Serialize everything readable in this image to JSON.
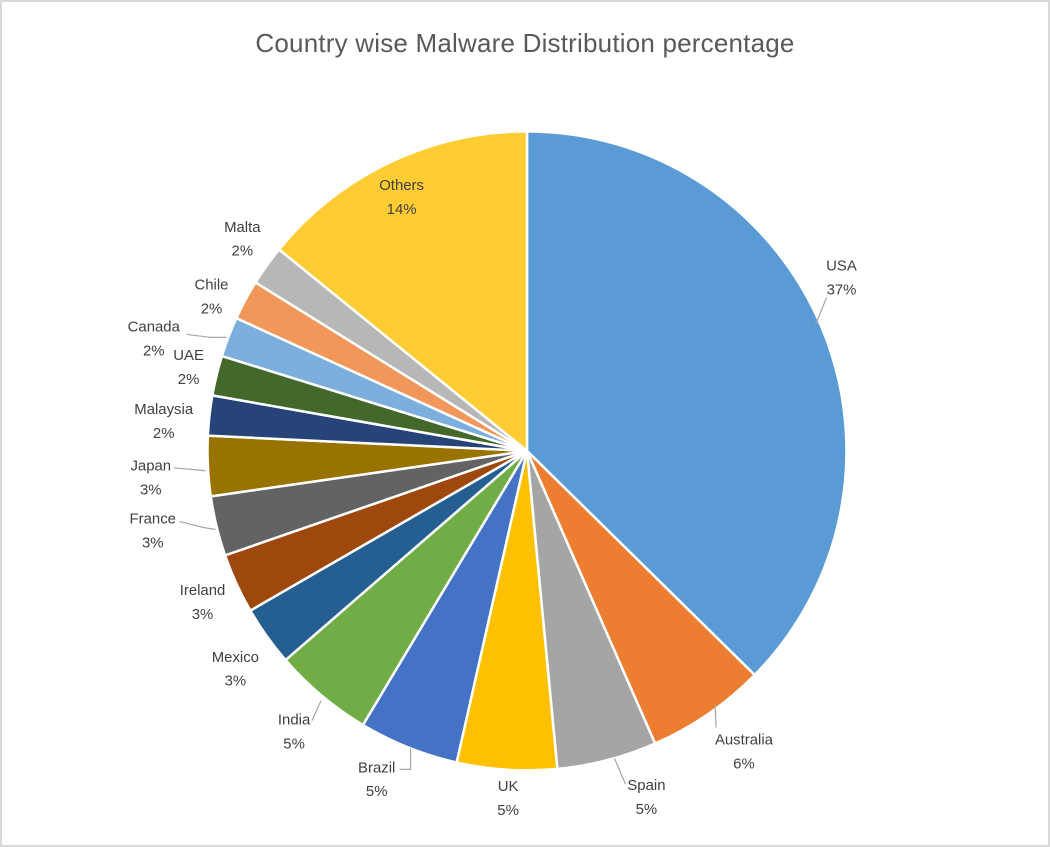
{
  "title": "Country wise Malware Distribution percentage",
  "chart_data": {
    "type": "pie",
    "title": "Country wise Malware Distribution percentage",
    "categories": [
      "USA",
      "Australia",
      "Spain",
      "UK",
      "Brazil",
      "India",
      "Mexico",
      "Ireland",
      "France",
      "Japan",
      "Malaysia",
      "UAE",
      "Canada",
      "Chile",
      "Malta",
      "Others"
    ],
    "values": [
      37,
      6,
      5,
      5,
      5,
      5,
      3,
      3,
      3,
      3,
      2,
      2,
      2,
      2,
      2,
      14
    ],
    "percent_labels": [
      "37%",
      "6%",
      "5%",
      "5%",
      "5%",
      "5%",
      "3%",
      "3%",
      "3%",
      "3%",
      "2%",
      "2%",
      "2%",
      "2%",
      "2%",
      "14%"
    ],
    "colors": [
      "#5B9BD5",
      "#ED7D31",
      "#A5A5A5",
      "#FFC000",
      "#4472C4",
      "#70AD47",
      "#255E91",
      "#9E480E",
      "#636363",
      "#997300",
      "#264478",
      "#43682B",
      "#7CAFDD",
      "#F1975A",
      "#B7B7B7",
      "#FFCD33"
    ],
    "start_angle_deg": 0,
    "direction": "clockwise",
    "legend": false,
    "label_position": "outside_end_with_leader_lines",
    "title_color": "#595959",
    "label_color": "#404040",
    "leader_line_color": "#A6A6A6",
    "slice_border_color": "#FFFFFF",
    "background": "#FFFFFF",
    "canvas_border_color": "#D9D9D9"
  }
}
